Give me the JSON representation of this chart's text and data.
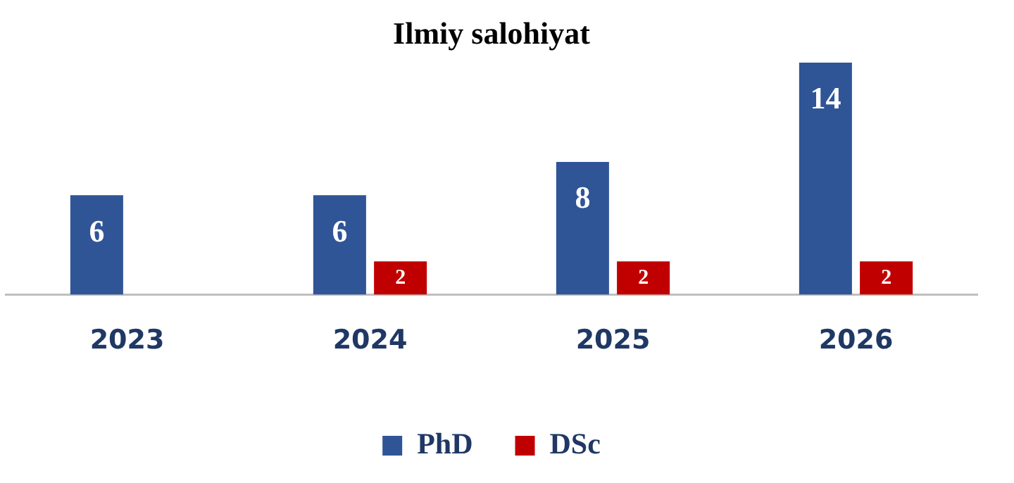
{
  "chart_data": {
    "type": "bar",
    "title": "Ilmiy salohiyat",
    "categories": [
      "2023",
      "2024",
      "2025",
      "2026"
    ],
    "series": [
      {
        "name": "PhD",
        "color": "#2f5597",
        "values": [
          6,
          6,
          8,
          14
        ]
      },
      {
        "name": "DSc",
        "color": "#c00000",
        "values": [
          null,
          2,
          2,
          2
        ]
      }
    ],
    "data_labels": true,
    "grid": false,
    "legend": "bottom"
  }
}
